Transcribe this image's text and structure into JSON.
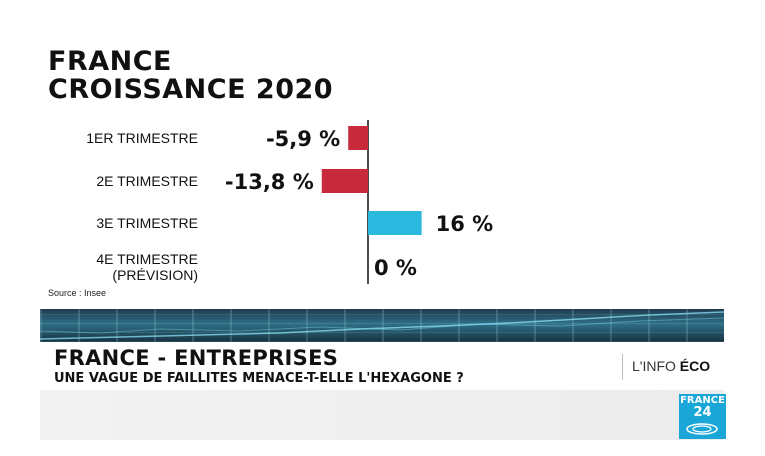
{
  "title_line1": "FRANCE",
  "title_line2": "CROISSANCE 2020",
  "source": "Source : Insee",
  "chart_data": {
    "type": "bar",
    "orientation": "horizontal",
    "categories": [
      [
        "1ER TRIMESTRE"
      ],
      [
        "2E TRIMESTRE"
      ],
      [
        "3E TRIMESTRE"
      ],
      [
        "4E TRIMESTRE",
        "(PRÉVISION)"
      ]
    ],
    "values": [
      -5.9,
      -13.8,
      16,
      0
    ],
    "value_labels": [
      "-5,9 %",
      "-13,8 %",
      "16 %",
      "0 %"
    ],
    "colors": {
      "negative": "#c8293b",
      "positive": "#2ab8df",
      "axis": "#222222"
    },
    "xlim": [
      -14,
      16
    ],
    "grid": false
  },
  "banner": {
    "headline": "FRANCE - ENTREPRISES",
    "subheadline": "UNE VAGUE DE FAILLITES MENACE-T-ELLE L'HEXAGONE ?",
    "tag_prefix": "L'INFO ",
    "tag_bold": "ÉCO"
  },
  "logo": {
    "line1": "FRANCE",
    "line2": "24",
    "color": "#1aa7d8"
  }
}
